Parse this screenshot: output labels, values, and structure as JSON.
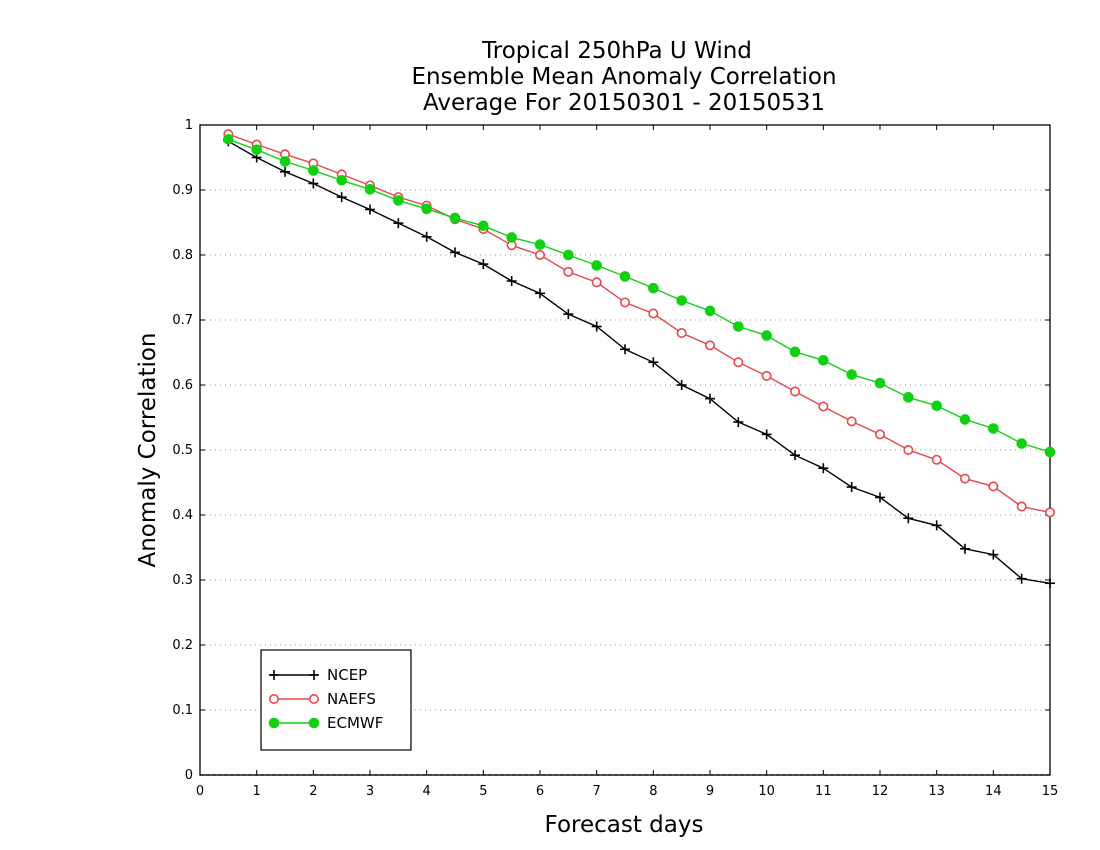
{
  "chart_data": {
    "type": "line",
    "title": "Tropical 250hPa U Wind",
    "subtitle": [
      "Ensemble Mean Anomaly Correlation",
      "Average For 20150301 - 20150531"
    ],
    "xlabel": "Forecast days",
    "ylabel": "Anomaly Correlation",
    "xlim": [
      0,
      15
    ],
    "ylim": [
      0,
      1
    ],
    "xticks": [
      0,
      1,
      2,
      3,
      4,
      5,
      6,
      7,
      8,
      9,
      10,
      11,
      12,
      13,
      14,
      15
    ],
    "yticks": [
      0,
      0.1,
      0.2,
      0.3,
      0.4,
      0.5,
      0.6,
      0.7,
      0.8,
      0.9,
      1
    ],
    "grid": "horizontal-dotted",
    "legend_position": "bottom-left",
    "x": [
      0.5,
      1,
      1.5,
      2,
      2.5,
      3,
      3.5,
      4,
      4.5,
      5,
      5.5,
      6,
      6.5,
      7,
      7.5,
      8,
      8.5,
      9,
      9.5,
      10,
      10.5,
      11,
      11.5,
      12,
      12.5,
      13,
      13.5,
      14,
      14.5,
      15
    ],
    "series": [
      {
        "name": "NCEP",
        "color": "#000000",
        "marker": "plus",
        "values": [
          0.975,
          0.95,
          0.928,
          0.91,
          0.889,
          0.87,
          0.849,
          0.828,
          0.804,
          0.786,
          0.76,
          0.741,
          0.709,
          0.69,
          0.655,
          0.635,
          0.6,
          0.579,
          0.543,
          0.524,
          0.492,
          0.472,
          0.443,
          0.427,
          0.395,
          0.384,
          0.348,
          0.339,
          0.302,
          0.295
        ]
      },
      {
        "name": "NAEFS",
        "color": "#e8474c",
        "marker": "open-circle",
        "values": [
          0.986,
          0.97,
          0.955,
          0.941,
          0.924,
          0.907,
          0.889,
          0.876,
          0.855,
          0.84,
          0.815,
          0.8,
          0.774,
          0.758,
          0.727,
          0.71,
          0.68,
          0.661,
          0.635,
          0.614,
          0.59,
          0.567,
          0.544,
          0.524,
          0.5,
          0.485,
          0.456,
          0.444,
          0.413,
          0.404
        ]
      },
      {
        "name": "ECMWF",
        "color": "#10d010",
        "marker": "filled-circle",
        "values": [
          0.978,
          0.962,
          0.944,
          0.93,
          0.915,
          0.901,
          0.884,
          0.871,
          0.857,
          0.845,
          0.827,
          0.816,
          0.8,
          0.784,
          0.767,
          0.749,
          0.73,
          0.714,
          0.69,
          0.676,
          0.651,
          0.638,
          0.616,
          0.603,
          0.581,
          0.568,
          0.547,
          0.533,
          0.51,
          0.497
        ]
      }
    ]
  }
}
